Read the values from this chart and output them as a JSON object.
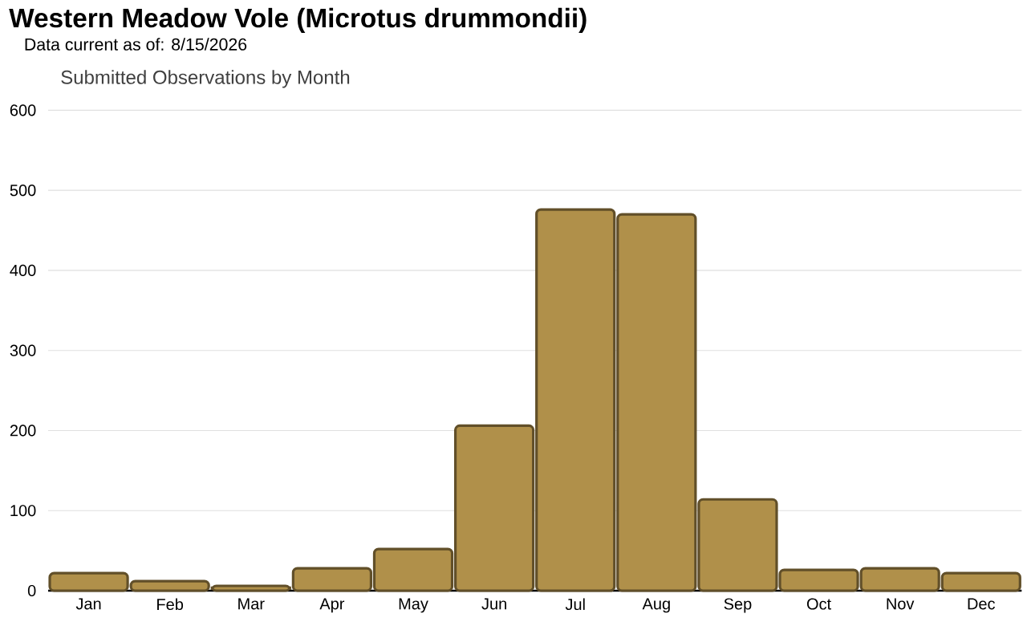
{
  "chart_data": {
    "type": "bar",
    "title": "Western Meadow Vole   (Microtus drummondii)",
    "subtitle": "Data current as of: 8/15/2026",
    "annotations": [
      "Submitted Observations by Month"
    ],
    "categories": [
      "Jan",
      "Feb",
      "Mar",
      "Apr",
      "May",
      "Jun",
      "Jul",
      "Aug",
      "Sep",
      "Oct",
      "Nov",
      "Dec"
    ],
    "values": [
      22,
      12,
      6,
      28,
      52,
      206,
      476,
      470,
      114,
      26,
      28,
      22
    ],
    "color": "#b0904a",
    "ylim": [
      0,
      600
    ],
    "yticks": [
      0,
      100,
      200,
      300,
      400,
      500,
      600
    ],
    "grid": "y"
  }
}
